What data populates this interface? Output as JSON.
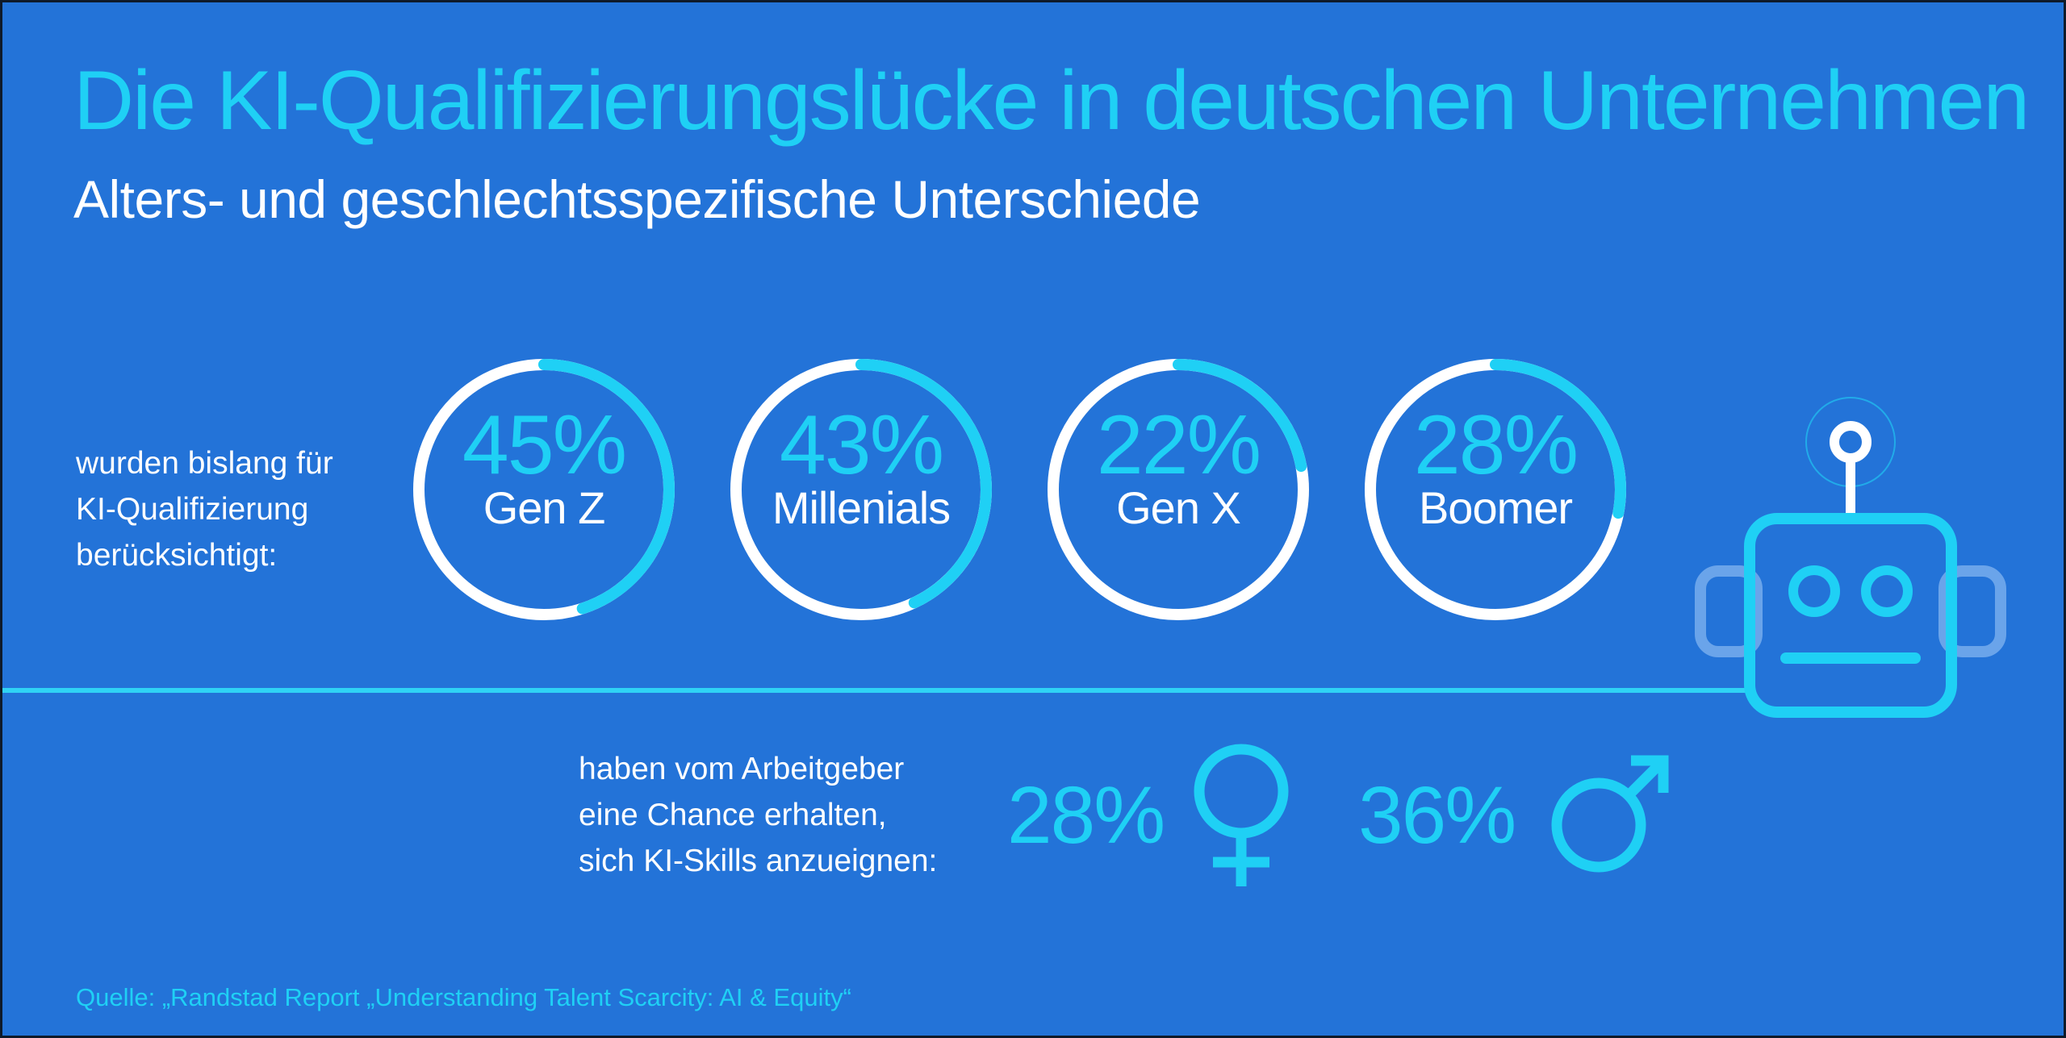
{
  "title": "Die KI-Qualifizierungslücke in deutschen Unternehmen",
  "subtitle": "Alters- und geschlechtsspezifische Unterschiede",
  "age_section": {
    "intro_lines": [
      "wurden bislang für",
      "KI-Qualifizierung",
      "berücksichtigt:"
    ]
  },
  "gender_section": {
    "intro_lines": [
      "haben vom Arbeitgeber",
      "eine Chance erhalten,",
      "sich KI-Skills anzueignen:"
    ]
  },
  "source": "Quelle: „Randstad Report „Understanding Talent Scarcity: AI & Equity“",
  "colors": {
    "background": "#2373d8",
    "accent": "#1fd0f5",
    "ring_track": "#ffffff",
    "text": "#ffffff"
  },
  "chart_data": [
    {
      "type": "donut",
      "unit": "%",
      "ylim": [
        0,
        100
      ],
      "categories": [
        "Gen Z",
        "Millenials",
        "Gen X",
        "Boomer"
      ],
      "values": [
        45,
        43,
        22,
        28
      ],
      "labels": [
        "45%",
        "43%",
        "22%",
        "28%"
      ]
    },
    {
      "type": "bar",
      "unit": "%",
      "categories": [
        "female-symbol",
        "male-symbol"
      ],
      "values": [
        28,
        36
      ],
      "labels": [
        "28%",
        "36%"
      ]
    }
  ]
}
